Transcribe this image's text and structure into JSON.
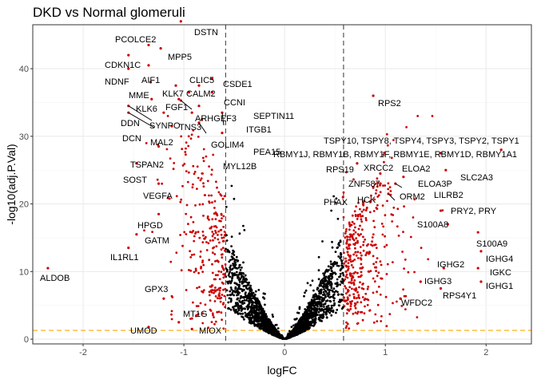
{
  "chart_data": {
    "type": "scatter",
    "title": "DKD vs Normal glomeruli",
    "xlabel": "logFC",
    "ylabel": "-log10(adj.P.Val)",
    "xlim": [
      -2.5,
      2.45
    ],
    "ylim": [
      -0.7,
      46.5
    ],
    "xticks": [
      -2,
      -1,
      0,
      1,
      2
    ],
    "yticks": [
      0,
      10,
      20,
      30,
      40
    ],
    "grid": true,
    "background": "#ffffff",
    "colors": {
      "significant": "#cc0000",
      "not_significant": "#000000",
      "fc_threshold_line": "#555555",
      "p_threshold_line": "#ffa500",
      "grid_major": "#ebebeb",
      "grid_minor": "#f5f5f5",
      "border": "#333333"
    },
    "fc_thresholds": [
      -0.585,
      0.585
    ],
    "p_threshold": 1.3,
    "labeled_points": [
      {
        "gene": "DSTN",
        "x": -1.03,
        "y": 47.0
      },
      {
        "gene": "PCOLCE2",
        "x": -1.35,
        "y": 43.5
      },
      {
        "gene": "MPP5",
        "x": -1.23,
        "y": 43.0
      },
      {
        "gene": "CDKN1C",
        "x": -1.55,
        "y": 42.0
      },
      {
        "gene": "NDNF",
        "x": -1.55,
        "y": 40.0
      },
      {
        "gene": "AIF1",
        "x": -1.35,
        "y": 40.5
      },
      {
        "gene": "CLIC5",
        "x": -0.85,
        "y": 37.5
      },
      {
        "gene": "CSDE1",
        "x": -0.72,
        "y": 38.5
      },
      {
        "gene": "MME",
        "x": -1.33,
        "y": 38.0
      },
      {
        "gene": "KLK7",
        "x": -1.08,
        "y": 37.5
      },
      {
        "gene": "CALM2",
        "x": -0.95,
        "y": 36.5
      },
      {
        "gene": "CCNI",
        "x": -0.72,
        "y": 36.5
      },
      {
        "gene": "KLK6",
        "x": -1.32,
        "y": 35.5
      },
      {
        "gene": "FGF1",
        "x": -1.05,
        "y": 35.5
      },
      {
        "gene": "SEPTIN11",
        "x": -1.03,
        "y": 35.3
      },
      {
        "gene": "ARHGEF3",
        "x": -0.85,
        "y": 34.5
      },
      {
        "gene": "DDN",
        "x": -1.55,
        "y": 34.5
      },
      {
        "gene": "SYNPO",
        "x": -1.2,
        "y": 33.5
      },
      {
        "gene": "TNS3",
        "x": -0.92,
        "y": 33.5
      },
      {
        "gene": "ITGB1",
        "x": -0.62,
        "y": 33.5
      },
      {
        "gene": "DCN",
        "x": -1.55,
        "y": 33.5
      },
      {
        "gene": "MAL2",
        "x": -1.12,
        "y": 31.5
      },
      {
        "gene": "GOLIM4",
        "x": -0.82,
        "y": 32.5
      },
      {
        "gene": "PEA15",
        "x": -0.85,
        "y": 32.0
      },
      {
        "gene": "MYL12B",
        "x": -0.62,
        "y": 30.5
      },
      {
        "gene": "TSPAN2",
        "x": -1.25,
        "y": 28.5
      },
      {
        "gene": "SOST",
        "x": -1.47,
        "y": 26.0
      },
      {
        "gene": "VEGFA",
        "x": -1.25,
        "y": 23.0
      },
      {
        "gene": "HPGD",
        "x": -1.25,
        "y": 18.5
      },
      {
        "gene": "GATM",
        "x": -1.47,
        "y": 15.5
      },
      {
        "gene": "IL1RL1",
        "x": -1.55,
        "y": 13.5
      },
      {
        "gene": "ALDOB",
        "x": -2.35,
        "y": 10.5
      },
      {
        "gene": "GPX3",
        "x": -1.2,
        "y": 6.0
      },
      {
        "gene": "MT1G",
        "x": -1.05,
        "y": 2.5
      },
      {
        "gene": "UMOD",
        "x": -1.35,
        "y": 1.8
      },
      {
        "gene": "MIOX",
        "x": -0.92,
        "y": 1.5
      },
      {
        "gene": "RPS2",
        "x": 0.88,
        "y": 36.0
      },
      {
        "gene": "TSPY10, TSPY8, TSPY4, TSPY3, TSPY2, TSPY1",
        "x": 1.55,
        "y": 27.5
      },
      {
        "gene": "RBMY1J, RBMY1B, RBMY1F, RBMY1E, RBMY1D, RBMY1A1",
        "x": 2.15,
        "y": 28.0
      },
      {
        "gene": "RPS19",
        "x": 0.72,
        "y": 26.0
      },
      {
        "gene": "XRCC2",
        "x": 0.95,
        "y": 24.5
      },
      {
        "gene": "ELOA2",
        "x": 1.18,
        "y": 24.0
      },
      {
        "gene": "SLC2A3",
        "x": 1.6,
        "y": 25.0
      },
      {
        "gene": "ZNF587",
        "x": 0.95,
        "y": 23.0
      },
      {
        "gene": "ELOA3P",
        "x": 1.1,
        "y": 23.0
      },
      {
        "gene": "ORM2",
        "x": 0.88,
        "y": 22.5
      },
      {
        "gene": "LILRB2",
        "x": 1.03,
        "y": 21.5
      },
      {
        "gene": "PHAX",
        "x": 0.58,
        "y": 21.0
      },
      {
        "gene": "HCK",
        "x": 0.78,
        "y": 20.0
      },
      {
        "gene": "PRY2, PRY",
        "x": 1.55,
        "y": 19.0
      },
      {
        "gene": "S100A8",
        "x": 1.62,
        "y": 17.0
      },
      {
        "gene": "S100A9",
        "x": 1.92,
        "y": 15.8
      },
      {
        "gene": "IGHG4",
        "x": 1.95,
        "y": 13.0
      },
      {
        "gene": "IGHG2",
        "x": 1.58,
        "y": 10.5
      },
      {
        "gene": "IGKC",
        "x": 1.92,
        "y": 10.5
      },
      {
        "gene": "IGHG3",
        "x": 1.35,
        "y": 8.5
      },
      {
        "gene": "IGHG1",
        "x": 1.95,
        "y": 8.5
      },
      {
        "gene": "RPS4Y1",
        "x": 1.55,
        "y": 7.5
      },
      {
        "gene": "WFDC2",
        "x": 1.15,
        "y": 6.0
      }
    ],
    "seed": 7
  }
}
